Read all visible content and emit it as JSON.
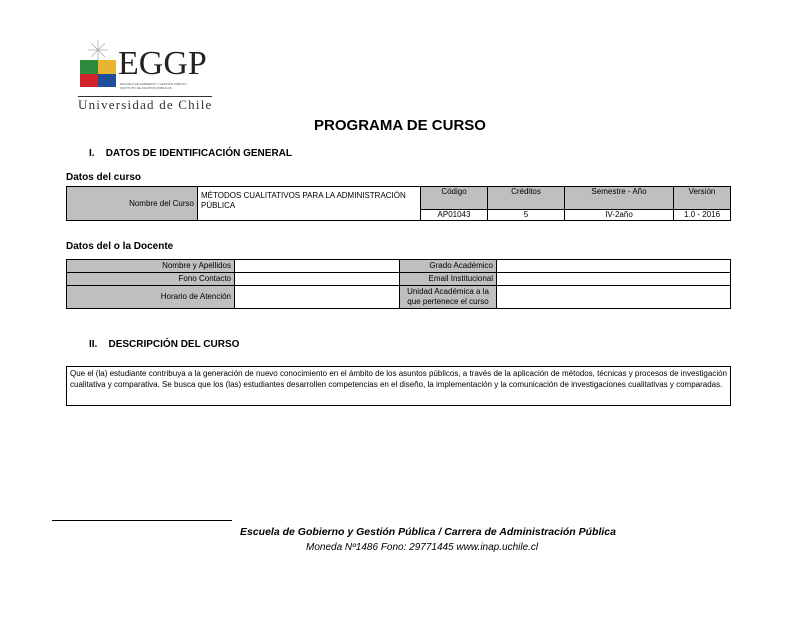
{
  "logo": {
    "brand": "EGGP",
    "sub1": "ESCUELA DE GOBIERNO Y GESTIÓN PÚBLICA",
    "sub2": "INSTITUTO DE ASUNTOS PÚBLICOS",
    "university": "Universidad de Chile"
  },
  "title": "PROGRAMA DE CURSO",
  "section1": {
    "num": "I.",
    "title": "DATOS DE IDENTIFICACIÓN GENERAL"
  },
  "course": {
    "heading": "Datos del curso",
    "name_label": "Nombre del Curso",
    "name_value": "MÉTODOS CUALITATIVOS PARA LA ADMINISTRACIÓN PÚBLICA",
    "columns": [
      "Código",
      "Créditos",
      "Semestre - Año",
      "Versión"
    ],
    "values": [
      "AP01043",
      "5",
      "IV-2año",
      "1.0 - 2016"
    ]
  },
  "teacher": {
    "heading": "Datos del o la Docente",
    "labels_left": [
      "Nombre y Apellidos",
      "Fono Contacto",
      "Horario de Atención"
    ],
    "labels_right": [
      "Grado Académico",
      "Email Institucional",
      "Unidad Académica a la que pertenece el curso"
    ]
  },
  "section2": {
    "num": "II.",
    "title": "DESCRIPCIÓN DEL CURSO"
  },
  "description": "Que el (la) estudiante contribuya a la generación de nuevo conocimiento en el ámbito de los asuntos públicos, a través de la aplicación de métodos, técnicas y procesos de investigación cualitativa y comparativa. Se busca que los (las) estudiantes desarrollen competencias en el diseño, la implementación y la comunicación de investigaciones cualitativas y comparadas.",
  "footer": {
    "line1": "Escuela de Gobierno y Gestión Pública / Carrera de Administración Pública",
    "line2": "Moneda Nº1486  Fono: 29771445  www.inap.uchile.cl"
  }
}
